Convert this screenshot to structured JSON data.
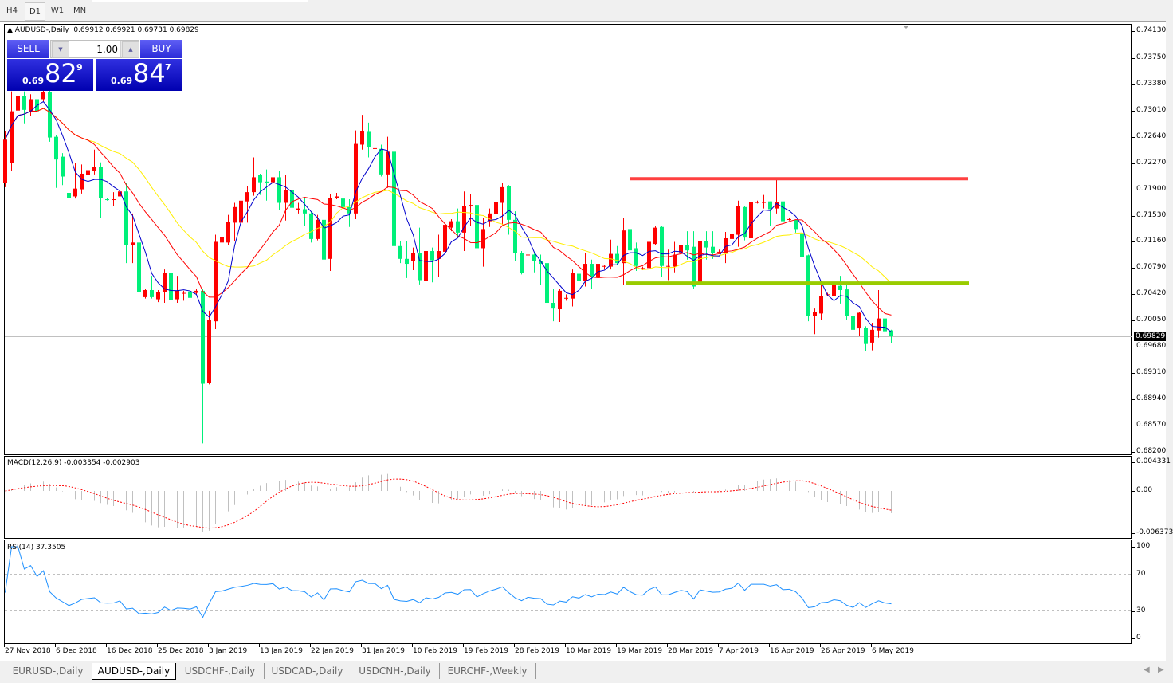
{
  "timeframes": {
    "items": [
      "H4",
      "D1",
      "W1",
      "MN"
    ],
    "active": "D1"
  },
  "chart": {
    "title": "AUDUSD-,Daily",
    "ohlc_text": "0.69912 0.69921 0.69731 0.69829",
    "current_price": "0.69829",
    "price_axis": [
      "0.74130",
      "0.73750",
      "0.73380",
      "0.73010",
      "0.72640",
      "0.72270",
      "0.71900",
      "0.71530",
      "0.71160",
      "0.70790",
      "0.70420",
      "0.70050",
      "0.69680",
      "0.69310",
      "0.68940",
      "0.68570",
      "0.68200"
    ],
    "up_color": "#ff0000",
    "down_color": "#00f07a",
    "ma_colors": [
      "#0000cc",
      "#ff0000",
      "#ffee00"
    ],
    "resistance_level": 0.7205,
    "resistance_color": "#ff4040",
    "support_level": 0.7058,
    "support_color": "#99cc00",
    "date_labels": [
      "27 Nov 2018",
      "6 Dec 2018",
      "16 Dec 2018",
      "25 Dec 2018",
      "3 Jan 2019",
      "13 Jan 2019",
      "22 Jan 2019",
      "31 Jan 2019",
      "10 Feb 2019",
      "19 Feb 2019",
      "28 Feb 2019",
      "10 Mar 2019",
      "19 Mar 2019",
      "28 Mar 2019",
      "7 Apr 2019",
      "16 Apr 2019",
      "26 Apr 2019",
      "6 May 2019"
    ]
  },
  "trade_panel": {
    "sell_label": "SELL",
    "buy_label": "BUY",
    "lot_value": "1.00",
    "bid": {
      "prefix": "0.69",
      "big": "82",
      "sup": "9"
    },
    "ask": {
      "prefix": "0.69",
      "big": "84",
      "sup": "7"
    }
  },
  "macd": {
    "title": "MACD(12,26,9) -0.003354 -0.002903",
    "axis": [
      "0.004331",
      "0.00",
      "-0.006373"
    ],
    "axis_values": [
      0.004331,
      0,
      -0.006373
    ],
    "histogram_color": "#c0c0c0",
    "signal_color": "#ff0000"
  },
  "rsi": {
    "title": "RSI(14) 37.3505",
    "axis": [
      "100",
      "70",
      "30",
      "0"
    ],
    "levels": [
      70,
      30
    ],
    "line_color": "#1e90ff"
  },
  "tabs": {
    "items": [
      "EURUSD-,Daily",
      "AUDUSD-,Daily",
      "USDCHF-,Daily",
      "USDCAD-,Daily",
      "USDCNH-,Daily",
      "EURCHF-,Weekly"
    ],
    "active": "AUDUSD-,Daily"
  },
  "chart_data": {
    "type": "candlestick",
    "symbol": "AUDUSD-,Daily",
    "ylim": [
      0.682,
      0.7413
    ],
    "candles_ohlc": [
      [
        0.7199,
        0.7272,
        0.7193,
        0.726
      ],
      [
        0.7227,
        0.7328,
        0.7216,
        0.73
      ],
      [
        0.7301,
        0.7331,
        0.7294,
        0.7322
      ],
      [
        0.7322,
        0.7328,
        0.7283,
        0.7302
      ],
      [
        0.73,
        0.7324,
        0.7294,
        0.7317
      ],
      [
        0.7317,
        0.7322,
        0.7289,
        0.73
      ],
      [
        0.7317,
        0.7333,
        0.7313,
        0.7327
      ],
      [
        0.7327,
        0.7331,
        0.7257,
        0.7263
      ],
      [
        0.7264,
        0.7266,
        0.7192,
        0.7232
      ],
      [
        0.7236,
        0.7241,
        0.7196,
        0.7208
      ],
      [
        0.7185,
        0.7192,
        0.7176,
        0.7178
      ],
      [
        0.718,
        0.7227,
        0.7177,
        0.7191
      ],
      [
        0.719,
        0.7225,
        0.7184,
        0.7212
      ],
      [
        0.721,
        0.7237,
        0.7204,
        0.7217
      ],
      [
        0.7216,
        0.7246,
        0.7211,
        0.7222
      ],
      [
        0.7221,
        0.7228,
        0.715,
        0.7178
      ],
      [
        0.7176,
        0.7178,
        0.7174,
        0.7175
      ],
      [
        0.7175,
        0.7186,
        0.7167,
        0.7176
      ],
      [
        0.718,
        0.7203,
        0.7163,
        0.7187
      ],
      [
        0.7187,
        0.7199,
        0.7086,
        0.7111
      ],
      [
        0.7111,
        0.7156,
        0.7086,
        0.7115
      ],
      [
        0.7115,
        0.712,
        0.7039,
        0.7045
      ],
      [
        0.7038,
        0.705,
        0.7036,
        0.7048
      ],
      [
        0.7048,
        0.7068,
        0.7036,
        0.7038
      ],
      [
        0.7035,
        0.7048,
        0.7031,
        0.7045
      ],
      [
        0.7045,
        0.7077,
        0.703,
        0.7072
      ],
      [
        0.7072,
        0.7075,
        0.7017,
        0.7034
      ],
      [
        0.7035,
        0.7068,
        0.703,
        0.7047
      ],
      [
        0.7044,
        0.7047,
        0.7033,
        0.7044
      ],
      [
        0.7046,
        0.7071,
        0.7033,
        0.7037
      ],
      [
        0.7044,
        0.705,
        0.7042,
        0.7047
      ],
      [
        0.7047,
        0.705,
        0.6832,
        0.6916
      ],
      [
        0.6917,
        0.7019,
        0.6915,
        0.7006
      ],
      [
        0.7004,
        0.7126,
        0.6993,
        0.7116
      ],
      [
        0.7115,
        0.7126,
        0.7111,
        0.7123
      ],
      [
        0.7115,
        0.7154,
        0.7111,
        0.7144
      ],
      [
        0.7143,
        0.7171,
        0.7117,
        0.7165
      ],
      [
        0.7143,
        0.7193,
        0.714,
        0.7174
      ],
      [
        0.7173,
        0.7195,
        0.7143,
        0.7186
      ],
      [
        0.7186,
        0.7235,
        0.7181,
        0.7207
      ],
      [
        0.721,
        0.7212,
        0.7182,
        0.72
      ],
      [
        0.7201,
        0.7218,
        0.7174,
        0.7199
      ],
      [
        0.72,
        0.7226,
        0.7187,
        0.7207
      ],
      [
        0.7207,
        0.7216,
        0.7161,
        0.7171
      ],
      [
        0.7171,
        0.721,
        0.7146,
        0.7189
      ],
      [
        0.7189,
        0.7216,
        0.7154,
        0.7164
      ],
      [
        0.7161,
        0.7171,
        0.7156,
        0.7163
      ],
      [
        0.7162,
        0.7178,
        0.7139,
        0.7156
      ],
      [
        0.7156,
        0.7159,
        0.7115,
        0.712
      ],
      [
        0.712,
        0.7154,
        0.7118,
        0.7147
      ],
      [
        0.7147,
        0.7184,
        0.7076,
        0.7091
      ],
      [
        0.7092,
        0.7183,
        0.7075,
        0.7178
      ],
      [
        0.7178,
        0.7185,
        0.7176,
        0.718
      ],
      [
        0.7177,
        0.7203,
        0.7163,
        0.7165
      ],
      [
        0.7165,
        0.7176,
        0.7137,
        0.7156
      ],
      [
        0.7156,
        0.7273,
        0.7148,
        0.7254
      ],
      [
        0.7253,
        0.7295,
        0.7246,
        0.7272
      ],
      [
        0.7271,
        0.7284,
        0.7235,
        0.7249
      ],
      [
        0.7248,
        0.7254,
        0.7244,
        0.7248
      ],
      [
        0.7247,
        0.7253,
        0.7208,
        0.7211
      ],
      [
        0.7211,
        0.7264,
        0.7192,
        0.7243
      ],
      [
        0.7243,
        0.7245,
        0.7103,
        0.711
      ],
      [
        0.711,
        0.7117,
        0.7086,
        0.7092
      ],
      [
        0.7092,
        0.7117,
        0.7065,
        0.7085
      ],
      [
        0.7089,
        0.7108,
        0.7076,
        0.71
      ],
      [
        0.71,
        0.7136,
        0.7056,
        0.7062
      ],
      [
        0.7061,
        0.7131,
        0.7054,
        0.7103
      ],
      [
        0.7103,
        0.7108,
        0.7059,
        0.709
      ],
      [
        0.7092,
        0.7126,
        0.7066,
        0.7103
      ],
      [
        0.7102,
        0.7148,
        0.7081,
        0.714
      ],
      [
        0.7136,
        0.7148,
        0.7131,
        0.7145
      ],
      [
        0.7145,
        0.7163,
        0.7123,
        0.7129
      ],
      [
        0.7129,
        0.7187,
        0.7103,
        0.7167
      ],
      [
        0.7168,
        0.7183,
        0.7139,
        0.7168
      ],
      [
        0.7168,
        0.7207,
        0.707,
        0.7107
      ],
      [
        0.7107,
        0.715,
        0.7081,
        0.7134
      ],
      [
        0.7145,
        0.7163,
        0.7137,
        0.7156
      ],
      [
        0.7155,
        0.7184,
        0.7137,
        0.7172
      ],
      [
        0.7171,
        0.7199,
        0.714,
        0.7193
      ],
      [
        0.7194,
        0.7196,
        0.7126,
        0.7147
      ],
      [
        0.7147,
        0.7159,
        0.7089,
        0.71
      ],
      [
        0.71,
        0.7103,
        0.707,
        0.7072
      ],
      [
        0.7098,
        0.7107,
        0.7091,
        0.7098
      ],
      [
        0.7098,
        0.7102,
        0.7073,
        0.7089
      ],
      [
        0.7089,
        0.7098,
        0.7055,
        0.7085
      ],
      [
        0.7086,
        0.7089,
        0.7021,
        0.703
      ],
      [
        0.703,
        0.705,
        0.7004,
        0.7022
      ],
      [
        0.7021,
        0.705,
        0.7003,
        0.7047
      ],
      [
        0.7037,
        0.7042,
        0.7033,
        0.7037
      ],
      [
        0.7036,
        0.7077,
        0.7025,
        0.7072
      ],
      [
        0.7071,
        0.7092,
        0.7056,
        0.7061
      ],
      [
        0.7061,
        0.71,
        0.7053,
        0.7085
      ],
      [
        0.7085,
        0.7091,
        0.705,
        0.7067
      ],
      [
        0.7066,
        0.7095,
        0.7064,
        0.7085
      ],
      [
        0.7082,
        0.7084,
        0.7077,
        0.7082
      ],
      [
        0.7081,
        0.7119,
        0.7077,
        0.7099
      ],
      [
        0.7099,
        0.711,
        0.7083,
        0.7086
      ],
      [
        0.7086,
        0.7149,
        0.7055,
        0.7132
      ],
      [
        0.7134,
        0.7167,
        0.7089,
        0.7104
      ],
      [
        0.7107,
        0.7115,
        0.7075,
        0.7082
      ],
      [
        0.7079,
        0.7081,
        0.7076,
        0.7079
      ],
      [
        0.7079,
        0.7147,
        0.7064,
        0.7116
      ],
      [
        0.7113,
        0.7139,
        0.7111,
        0.7136
      ],
      [
        0.7137,
        0.7139,
        0.7067,
        0.7082
      ],
      [
        0.7082,
        0.7105,
        0.7062,
        0.7082
      ],
      [
        0.7081,
        0.7116,
        0.7073,
        0.7098
      ],
      [
        0.7101,
        0.7116,
        0.7098,
        0.7112
      ],
      [
        0.7111,
        0.7131,
        0.7091,
        0.7104
      ],
      [
        0.7109,
        0.7131,
        0.705,
        0.7053
      ],
      [
        0.7058,
        0.7129,
        0.7053,
        0.7117
      ],
      [
        0.7117,
        0.7131,
        0.7091,
        0.7108
      ],
      [
        0.7109,
        0.7131,
        0.7092,
        0.71
      ],
      [
        0.7102,
        0.7105,
        0.71,
        0.7102
      ],
      [
        0.71,
        0.713,
        0.7086,
        0.7121
      ],
      [
        0.712,
        0.7129,
        0.7118,
        0.7127
      ],
      [
        0.7126,
        0.7174,
        0.7109,
        0.7166
      ],
      [
        0.7165,
        0.7167,
        0.7118,
        0.7122
      ],
      [
        0.7121,
        0.7192,
        0.7118,
        0.7172
      ],
      [
        0.7172,
        0.7174,
        0.717,
        0.7172
      ],
      [
        0.7172,
        0.7182,
        0.7163,
        0.7172
      ],
      [
        0.7173,
        0.7173,
        0.7139,
        0.7162
      ],
      [
        0.7163,
        0.7203,
        0.7156,
        0.7172
      ],
      [
        0.7173,
        0.7199,
        0.7135,
        0.7145
      ],
      [
        0.7148,
        0.715,
        0.7146,
        0.7148
      ],
      [
        0.7147,
        0.7147,
        0.7129,
        0.7134
      ],
      [
        0.7128,
        0.7128,
        0.7081,
        0.7095
      ],
      [
        0.7097,
        0.7098,
        0.7004,
        0.7012
      ],
      [
        0.7011,
        0.7022,
        0.6986,
        0.7017
      ],
      [
        0.7015,
        0.7061,
        0.7006,
        0.7039
      ],
      [
        0.7042,
        0.7044,
        0.7039,
        0.7042
      ],
      [
        0.704,
        0.7061,
        0.7039,
        0.7055
      ],
      [
        0.7054,
        0.7068,
        0.7029,
        0.7048
      ],
      [
        0.7049,
        0.7057,
        0.7006,
        0.7012
      ],
      [
        0.7012,
        0.703,
        0.6983,
        0.6992
      ],
      [
        0.6994,
        0.7017,
        0.6983,
        0.7016
      ],
      [
        0.6995,
        0.6997,
        0.6962,
        0.6972
      ],
      [
        0.6974,
        0.7002,
        0.6963,
        0.6992
      ],
      [
        0.6991,
        0.7048,
        0.6981,
        0.7008
      ],
      [
        0.7008,
        0.7026,
        0.6988,
        0.699
      ],
      [
        0.69912,
        0.69921,
        0.69731,
        0.69829
      ]
    ]
  }
}
